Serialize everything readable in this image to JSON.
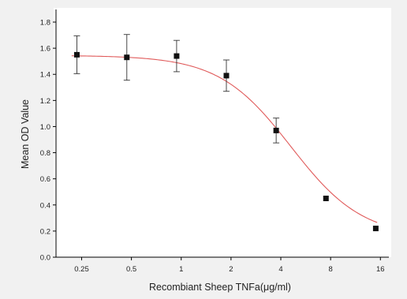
{
  "chart_data": {
    "type": "scatter",
    "title": "",
    "xlabel": "Recombiant Sheep TNFa(μg/ml)",
    "ylabel": "Mean OD Value",
    "x_scale": "log2",
    "xlim": [
      0.175,
      18
    ],
    "ylim": [
      0,
      1.8
    ],
    "x_ticks": [
      0.25,
      0.5,
      1,
      2,
      4,
      8,
      16
    ],
    "x_tick_labels": [
      "0.25",
      "0.5",
      "1",
      "2",
      "4",
      "8",
      "16"
    ],
    "y_ticks": [
      0.0,
      0.2,
      0.4,
      0.6,
      0.8,
      1.0,
      1.2,
      1.4,
      1.6,
      1.8
    ],
    "y_tick_labels": [
      "0.0",
      "0.2",
      "0.4",
      "0.6",
      "0.8",
      "1.0",
      "1.2",
      "1.4",
      "1.6",
      "1.8"
    ],
    "grid": false,
    "legend": "none",
    "series": [
      {
        "x": [
          0.234,
          0.469,
          0.938,
          1.875,
          3.75,
          7.5,
          15
        ],
        "y": [
          1.55,
          1.53,
          1.54,
          1.39,
          0.97,
          0.45,
          0.22
        ],
        "error": [
          0.145,
          0.175,
          0.12,
          0.12,
          0.095,
          0.0,
          0.0
        ],
        "marker_color": "#111111",
        "error_bar_color": "#333333"
      }
    ],
    "fit_curve": {
      "model": "4PL",
      "top": 1.545,
      "bottom": 0.15,
      "ec50": 4.6,
      "hill": 2.0,
      "color": "#e05a5a"
    },
    "colors": {
      "background": "#f1f1f1",
      "plot_background": "#ffffff",
      "axis": "#000000"
    }
  }
}
